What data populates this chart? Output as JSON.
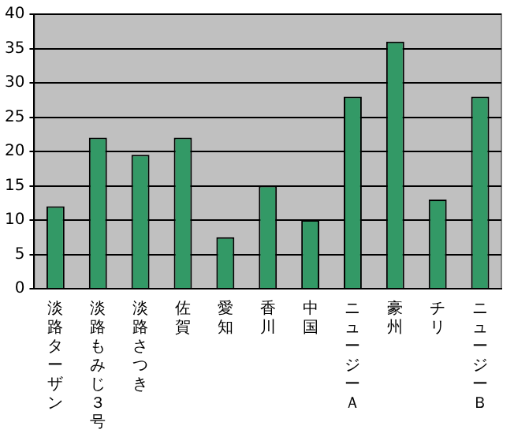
{
  "chart_data": {
    "type": "bar",
    "categories": [
      "淡路ターザン",
      "淡路もみじ３号",
      "淡路さつき",
      "佐賀",
      "愛知",
      "香川",
      "中国",
      "ニュージーＡ",
      "豪州",
      "チリ",
      "ニュージーＢ"
    ],
    "values": [
      12,
      22,
      19.5,
      22,
      7.5,
      15,
      10,
      28,
      36,
      13,
      28
    ],
    "color": "#339966",
    "ylim": [
      0,
      40
    ],
    "yticks": [
      0,
      5,
      10,
      15,
      20,
      25,
      30,
      35,
      40
    ],
    "grid": "y"
  }
}
